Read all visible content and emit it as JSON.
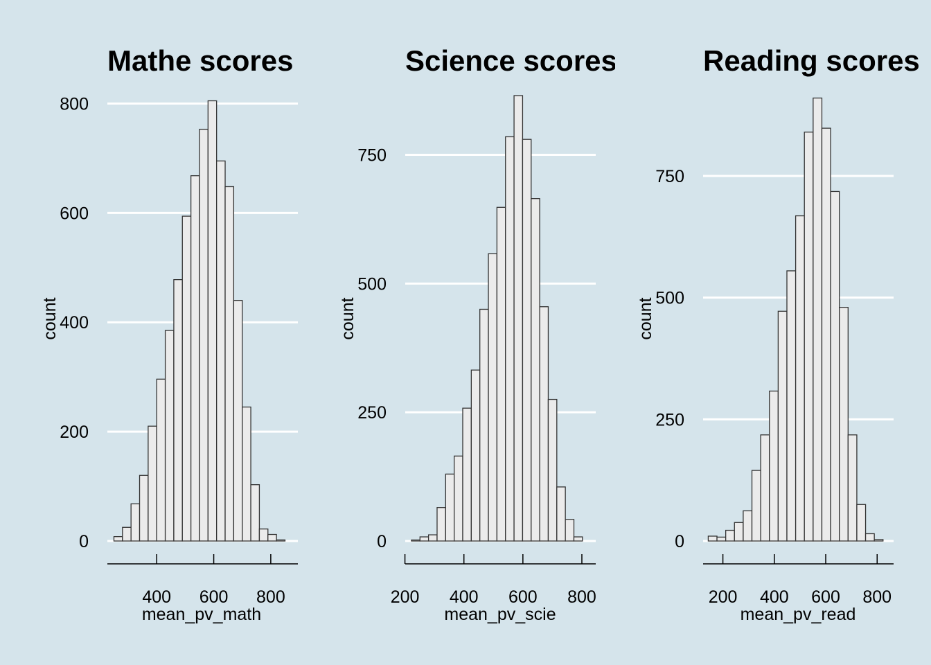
{
  "chart_data": [
    {
      "type": "bar",
      "title": "Mathe scores",
      "xlabel": "mean_pv_math",
      "ylabel": "count",
      "xlim": [
        227,
        895
      ],
      "ylim": [
        0,
        812
      ],
      "x_ticks": [
        400,
        600,
        800
      ],
      "y_ticks": [
        0,
        200,
        400,
        600,
        800
      ],
      "grid": true,
      "bin_start": 250,
      "bin_width": 30,
      "values": [
        8,
        25,
        68,
        120,
        210,
        296,
        385,
        478,
        594,
        668,
        753,
        805,
        695,
        648,
        440,
        245,
        103,
        22,
        12,
        2
      ]
    },
    {
      "type": "bar",
      "title": "Science scores",
      "xlabel": "mean_pv_scie",
      "ylabel": "count",
      "xlim": [
        201,
        847
      ],
      "ylim": [
        0,
        865
      ],
      "x_ticks": [
        200,
        400,
        600,
        800
      ],
      "y_ticks": [
        0,
        250,
        500,
        750
      ],
      "grid": true,
      "bin_start": 222,
      "bin_width": 29,
      "values": [
        2,
        8,
        12,
        65,
        130,
        165,
        258,
        332,
        450,
        558,
        648,
        785,
        865,
        780,
        665,
        455,
        275,
        105,
        42,
        8
      ]
    },
    {
      "type": "bar",
      "title": "Reading scores",
      "xlabel": "mean_pv_read",
      "ylabel": "count",
      "xlim": [
        123,
        864
      ],
      "ylim": [
        0,
        915
      ],
      "x_ticks": [
        200,
        400,
        600,
        800
      ],
      "y_ticks": [
        0,
        250,
        500,
        750
      ],
      "grid": true,
      "bin_start": 143,
      "bin_width": 34,
      "values": [
        10,
        8,
        22,
        38,
        62,
        145,
        218,
        308,
        472,
        555,
        668,
        840,
        910,
        848,
        718,
        480,
        218,
        75,
        15,
        3
      ]
    }
  ]
}
